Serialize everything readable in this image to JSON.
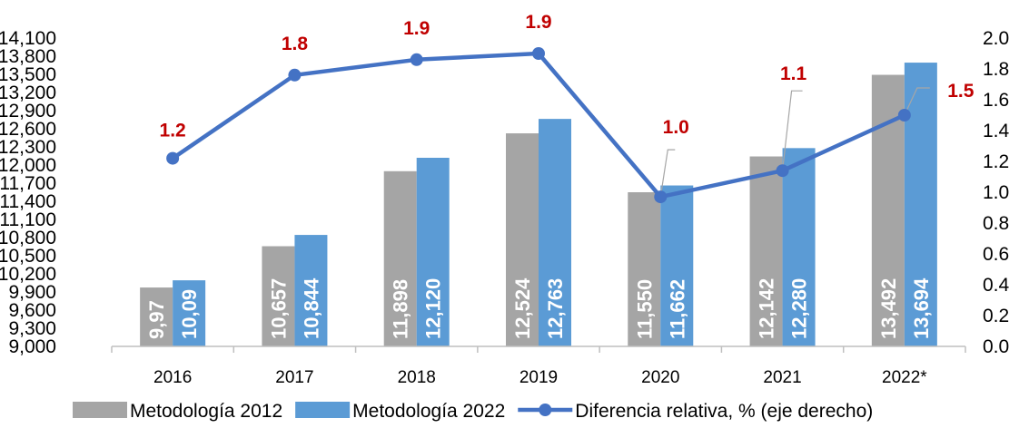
{
  "chart_data": {
    "type": "bar",
    "categories": [
      "2016",
      "2017",
      "2018",
      "2019",
      "2020",
      "2021",
      "2022*"
    ],
    "series": [
      {
        "name": "Metodología 2012",
        "type": "bar",
        "axis": "left",
        "color": "#a5a5a5",
        "values": [
          9974,
          10657,
          11898,
          12524,
          11550,
          12142,
          13492
        ],
        "labels": [
          "9,97",
          "10,657",
          "11,898",
          "12,524",
          "11,550",
          "12,142",
          "13,492"
        ]
      },
      {
        "name": "Metodología 2022",
        "type": "bar",
        "axis": "left",
        "color": "#5b9bd5",
        "values": [
          10093,
          10844,
          12120,
          12763,
          11662,
          12280,
          13694
        ],
        "labels": [
          "10,09",
          "10,844",
          "12,120",
          "12,763",
          "11,662",
          "12,280",
          "13,694"
        ]
      },
      {
        "name": "Diferencia relativa, % (eje derecho)",
        "type": "line",
        "axis": "right",
        "color": "#4472c4",
        "label_color": "#c00000",
        "values": [
          1.22,
          1.76,
          1.86,
          1.9,
          0.97,
          1.14,
          1.5
        ],
        "labels": [
          "1.2",
          "1.8",
          "1.9",
          "1.9",
          "1.0",
          "1.1",
          "1.5"
        ]
      }
    ],
    "y_left": {
      "min": 9000,
      "max": 14100,
      "ticks": [
        "9,000",
        "9,300",
        "9,600",
        "9,900",
        "10,200",
        "10,500",
        "10,800",
        "11,100",
        "11,400",
        "11,700",
        "12,000",
        "12,300",
        "12,600",
        "12,900",
        "13,200",
        "13,500",
        "13,800",
        "14,100"
      ]
    },
    "y_right": {
      "min": 0,
      "max": 2.0,
      "ticks": [
        "0.0",
        "0.2",
        "0.4",
        "0.6",
        "0.8",
        "1.0",
        "1.2",
        "1.4",
        "1.6",
        "1.8",
        "2.0"
      ]
    },
    "grid": false,
    "legend": "bottom"
  }
}
